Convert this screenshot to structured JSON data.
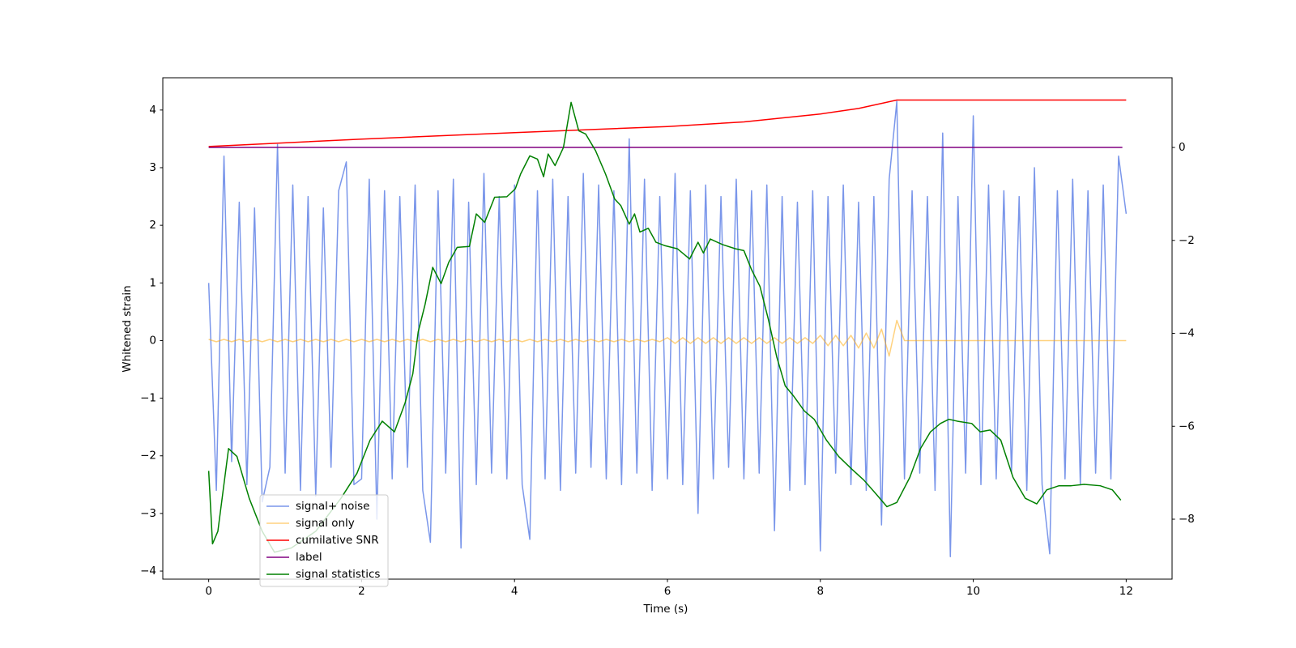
{
  "chart_data": {
    "type": "line",
    "xlabel": "Time (s)",
    "ylabel": "Whitened strain",
    "xlim": [
      -0.6,
      12.6
    ],
    "xticks": [
      0,
      2,
      4,
      6,
      8,
      10,
      12
    ],
    "ylim": [
      -4.14,
      4.56
    ],
    "yticks": [
      {
        "value": -4,
        "label": "−4"
      },
      {
        "value": -3,
        "label": "−3"
      },
      {
        "value": -2,
        "label": "−2"
      },
      {
        "value": -1,
        "label": "−1"
      },
      0,
      1,
      2,
      3,
      4
    ],
    "y2lim": [
      -9.29,
      1.5
    ],
    "y2ticks": [
      {
        "value": -8,
        "label": "−8"
      },
      {
        "value": -6,
        "label": "−6"
      },
      {
        "value": -4,
        "label": "−4"
      },
      {
        "value": -2,
        "label": "−2"
      },
      0
    ],
    "legend": "lower left",
    "x": [
      0,
      0.1,
      0.2,
      0.3,
      0.4,
      0.5,
      0.6,
      0.7,
      0.8,
      0.9,
      1,
      1.1,
      1.2,
      1.3,
      1.4,
      1.5,
      1.6,
      1.7,
      1.8,
      1.9,
      2,
      2.1,
      2.2,
      2.3,
      2.4,
      2.5,
      2.6,
      2.7,
      2.8,
      2.9,
      3,
      3.1,
      3.2,
      3.3,
      3.4,
      3.5,
      3.6,
      3.7,
      3.8,
      3.9,
      4,
      4.1,
      4.2,
      4.3,
      4.4,
      4.5,
      4.6,
      4.7,
      4.8,
      4.9,
      5,
      5.1,
      5.2,
      5.3,
      5.4,
      5.5,
      5.6,
      5.7,
      5.8,
      5.9,
      6,
      6.1,
      6.2,
      6.3,
      6.4,
      6.5,
      6.6,
      6.7,
      6.8,
      6.9,
      7,
      7.1,
      7.2,
      7.3,
      7.4,
      7.5,
      7.6,
      7.7,
      7.8,
      7.9,
      8,
      8.1,
      8.2,
      8.3,
      8.4,
      8.5,
      8.6,
      8.7,
      8.8,
      8.9,
      9,
      9.1,
      9.2,
      9.3,
      9.4,
      9.5,
      9.6,
      9.7,
      9.8,
      9.9,
      10,
      10.1,
      10.2,
      10.3,
      10.4,
      10.5,
      10.6,
      10.7,
      10.8,
      10.9,
      11,
      11.1,
      11.2,
      11.3,
      11.4,
      11.5,
      11.6,
      11.7,
      11.8,
      11.9,
      12
    ],
    "series": [
      {
        "name": "signal+ noise",
        "color": "#4169e1",
        "opacity": 0.7,
        "values": [
          1.0,
          -2.6,
          3.2,
          -2.1,
          2.4,
          -2.5,
          2.3,
          -2.8,
          -2.2,
          3.4,
          -2.3,
          2.7,
          -2.6,
          2.5,
          -2.7,
          2.3,
          -2.2,
          2.6,
          3.1,
          -2.5,
          -2.4,
          2.8,
          -3.1,
          2.6,
          -2.4,
          2.5,
          -2.2,
          2.7,
          -2.6,
          -3.5,
          2.6,
          -2.3,
          2.8,
          -3.6,
          2.4,
          -2.5,
          2.9,
          -2.3,
          2.5,
          -2.4,
          2.7,
          -2.5,
          -3.45,
          2.6,
          -2.4,
          2.8,
          -2.6,
          2.5,
          -2.3,
          2.9,
          -2.2,
          2.7,
          -2.4,
          2.6,
          -2.5,
          3.5,
          -2.3,
          2.8,
          -2.6,
          2.5,
          -2.4,
          2.9,
          -2.5,
          2.6,
          -3.0,
          2.7,
          -2.4,
          2.5,
          -2.2,
          2.8,
          -2.4,
          2.6,
          -2.3,
          2.7,
          -3.3,
          2.5,
          -2.6,
          2.4,
          -2.5,
          2.6,
          -3.65,
          2.5,
          -2.3,
          2.7,
          -2.5,
          2.4,
          -2.6,
          2.5,
          -3.2,
          2.8,
          4.15,
          -2.4,
          2.6,
          -2.3,
          2.5,
          -2.6,
          3.6,
          -3.75,
          2.5,
          -2.3,
          3.9,
          -2.5,
          2.7,
          -2.4,
          2.6,
          -2.3,
          2.5,
          -2.6,
          3.0,
          -2.5,
          -3.7,
          2.6,
          -2.4,
          2.8,
          -2.5,
          2.6,
          -2.3,
          2.7,
          -2.4,
          3.2,
          2.2
        ]
      },
      {
        "name": "signal only",
        "color": "#ffa500",
        "opacity": 0.5,
        "values": [
          0.02,
          -0.02,
          0.02,
          -0.02,
          0.02,
          -0.02,
          0.02,
          -0.02,
          0.02,
          -0.02,
          0.02,
          -0.02,
          0.02,
          -0.02,
          0.02,
          -0.02,
          0.02,
          -0.02,
          0.02,
          -0.02,
          0.02,
          -0.02,
          0.02,
          -0.02,
          0.02,
          -0.02,
          0.02,
          -0.02,
          0.02,
          -0.02,
          0.02,
          -0.02,
          0.02,
          -0.02,
          0.02,
          -0.02,
          0.02,
          -0.02,
          0.02,
          -0.02,
          0.02,
          -0.02,
          0.02,
          -0.02,
          0.02,
          -0.02,
          0.02,
          -0.02,
          0.02,
          -0.02,
          0.02,
          -0.02,
          0.02,
          -0.02,
          0.02,
          -0.02,
          0.02,
          -0.02,
          0.02,
          -0.02,
          0.05,
          -0.05,
          0.05,
          -0.05,
          0.05,
          -0.05,
          0.05,
          -0.05,
          0.05,
          -0.05,
          0.05,
          -0.05,
          0.05,
          -0.05,
          0.05,
          -0.05,
          0.05,
          -0.05,
          0.05,
          -0.05,
          0.09,
          -0.09,
          0.09,
          -0.09,
          0.09,
          -0.13,
          0.13,
          -0.13,
          0.2,
          -0.27,
          0.35,
          0,
          0,
          0,
          0,
          0,
          0,
          0,
          0,
          0,
          0,
          0,
          0,
          0,
          0,
          0,
          0,
          0,
          0,
          0,
          0,
          0,
          0,
          0,
          0,
          0,
          0,
          0,
          0,
          0,
          0
        ]
      },
      {
        "name": "cumilative SNR",
        "color": "#ff0000",
        "axis": "y2",
        "x": [
          0,
          2,
          4,
          6,
          7,
          8,
          8.5,
          9,
          12
        ],
        "values": [
          0.02,
          0.18,
          0.32,
          0.45,
          0.55,
          0.72,
          0.84,
          1.02,
          1.02
        ]
      },
      {
        "name": "label",
        "color": "#800080",
        "axis": "y2",
        "x": [
          0,
          11.95
        ],
        "values": [
          0,
          0
        ]
      },
      {
        "name": "signal statistics",
        "color": "#008000",
        "axis": "y2",
        "x": [
          0,
          0.05,
          0.12,
          0.26,
          0.37,
          0.53,
          0.7,
          0.86,
          1.08,
          1.4,
          1.73,
          1.94,
          2.11,
          2.27,
          2.43,
          2.57,
          2.67,
          2.74,
          2.83,
          2.93,
          3.04,
          3.14,
          3.25,
          3.41,
          3.5,
          3.61,
          3.74,
          3.9,
          4.01,
          4.08,
          4.2,
          4.3,
          4.38,
          4.44,
          4.53,
          4.64,
          4.74,
          4.84,
          4.93,
          5.06,
          5.19,
          5.31,
          5.39,
          5.5,
          5.57,
          5.64,
          5.75,
          5.85,
          5.96,
          6.13,
          6.29,
          6.4,
          6.47,
          6.56,
          6.72,
          6.89,
          7,
          7.1,
          7.21,
          7.32,
          7.43,
          7.54,
          7.65,
          7.79,
          7.92,
          8.08,
          8.24,
          8.41,
          8.57,
          8.73,
          8.87,
          9,
          9.17,
          9.31,
          9.44,
          9.57,
          9.68,
          9.79,
          9.98,
          10.09,
          10.22,
          10.36,
          10.52,
          10.68,
          10.83,
          10.96,
          11.12,
          11.28,
          11.45,
          11.66,
          11.82,
          11.93
        ],
        "values": [
          -6.96,
          -8.53,
          -8.26,
          -6.48,
          -6.65,
          -7.55,
          -8.26,
          -8.71,
          -8.62,
          -8.26,
          -7.55,
          -7.01,
          -6.3,
          -5.89,
          -6.12,
          -5.49,
          -4.87,
          -3.97,
          -3.38,
          -2.58,
          -2.93,
          -2.47,
          -2.15,
          -2.13,
          -1.43,
          -1.61,
          -1.07,
          -1.06,
          -0.89,
          -0.57,
          -0.18,
          -0.25,
          -0.63,
          -0.14,
          -0.39,
          0,
          0.97,
          0.36,
          0.29,
          -0.07,
          -0.57,
          -1.11,
          -1.25,
          -1.65,
          -1.43,
          -1.82,
          -1.74,
          -2.04,
          -2.11,
          -2.18,
          -2.4,
          -2.04,
          -2.27,
          -1.97,
          -2.09,
          -2.18,
          -2.22,
          -2.63,
          -2.99,
          -3.7,
          -4.51,
          -5.13,
          -5.35,
          -5.67,
          -5.85,
          -6.3,
          -6.65,
          -6.92,
          -7.16,
          -7.46,
          -7.73,
          -7.64,
          -7.1,
          -6.48,
          -6.12,
          -5.94,
          -5.85,
          -5.89,
          -5.94,
          -6.12,
          -6.08,
          -6.3,
          -7.1,
          -7.55,
          -7.67,
          -7.37,
          -7.28,
          -7.28,
          -7.25,
          -7.28,
          -7.37,
          -7.59
        ]
      }
    ]
  }
}
